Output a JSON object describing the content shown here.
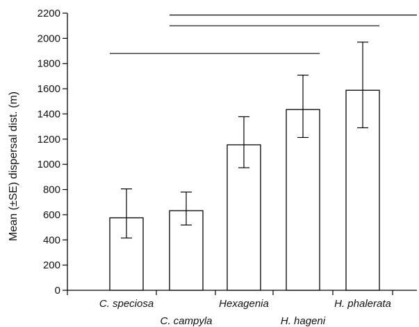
{
  "chart_data": {
    "type": "bar",
    "ylabel": "Mean (±SE) dispersal dist. (m)",
    "xlabel": "",
    "ylim": [
      0,
      2200
    ],
    "yticks": [
      0,
      200,
      400,
      600,
      800,
      1000,
      1200,
      1400,
      1600,
      1800,
      2000,
      2200
    ],
    "categories": [
      "C. speciosa",
      "C. campyla",
      "Hexagenia",
      "H. hageni",
      "H. phalerata"
    ],
    "values": [
      575,
      632,
      1155,
      1435,
      1588
    ],
    "errors": [
      {
        "low": 415,
        "high": 805
      },
      {
        "low": 518,
        "high": 780
      },
      {
        "low": 973,
        "high": 1378
      },
      {
        "low": 1213,
        "high": 1708
      },
      {
        "low": 1290,
        "high": 1970
      }
    ],
    "significance_lines": [
      {
        "from": "C. speciosa",
        "to": "H. hageni",
        "y": 1880
      },
      {
        "from": "C. campyla",
        "to": "H. phalerata",
        "y": 2100
      },
      {
        "from": "C. campyla",
        "to": "end",
        "y": 2185
      }
    ],
    "bar_fill": "#ffffff",
    "stroke_color": "#000000",
    "grid": false,
    "legend": "none"
  }
}
